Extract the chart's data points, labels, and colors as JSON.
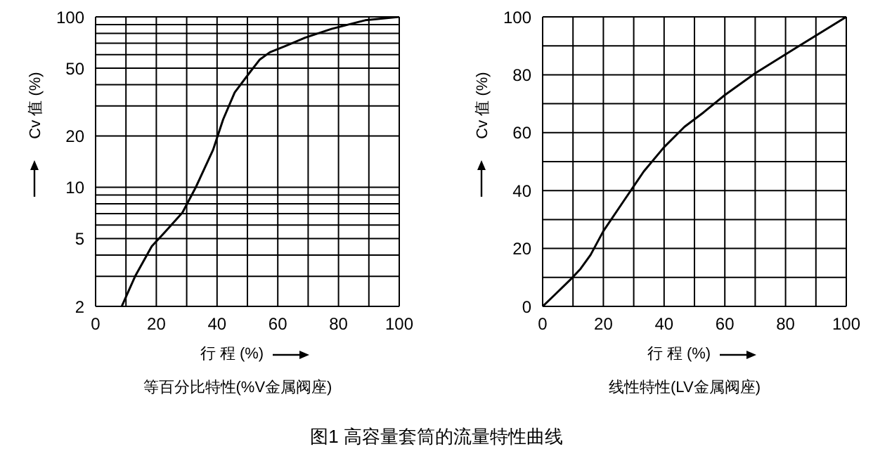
{
  "chart_data": [
    {
      "type": "line",
      "subtitle": "等百分比特性(%V金属阀座)",
      "xlabel": "行 程 (%)",
      "ylabel": "Cv 值 (%)",
      "annotations": [
        "图1 高容量套筒的流量特性曲线"
      ],
      "log": "y",
      "grid": true,
      "marker": "none",
      "line_style": "solid",
      "x": [
        8.6,
        13,
        18.5,
        23,
        28.6,
        33,
        38.7,
        42,
        45.8,
        50.7,
        54,
        57.4,
        63,
        69,
        77.7,
        88.8,
        100
      ],
      "series": [
        {
          "color": "#000000",
          "values": [
            2,
            3,
            4.5,
            5.5,
            7.1,
            10,
            16.6,
            25,
            36,
            47,
            56,
            62,
            68,
            75.5,
            85,
            95.5,
            100
          ]
        }
      ],
      "xlim": [
        0,
        100
      ],
      "xticks": [
        0,
        {
          "value": 10,
          "label": null
        },
        20,
        {
          "value": 30,
          "label": null
        },
        40,
        {
          "value": 50,
          "label": null
        },
        60,
        {
          "value": 70,
          "label": null
        },
        80,
        {
          "value": 90,
          "label": null
        },
        100
      ],
      "ylim": [
        2,
        100
      ],
      "yticks": [
        2,
        {
          "value": 3,
          "label": null
        },
        {
          "value": 4,
          "label": null
        },
        5,
        {
          "value": 6,
          "label": null
        },
        {
          "value": 7,
          "label": null
        },
        {
          "value": 8,
          "label": null
        },
        {
          "value": 9,
          "label": null
        },
        10,
        20,
        {
          "value": 30,
          "label": null
        },
        {
          "value": 40,
          "label": null
        },
        50,
        {
          "value": 60,
          "label": null
        },
        {
          "value": 70,
          "label": null
        },
        {
          "value": 80,
          "label": null
        },
        {
          "value": 90,
          "label": null
        },
        100
      ]
    },
    {
      "type": "line",
      "subtitle": "线性特性(LV金属阀座)",
      "xlabel": "行 程 (%)",
      "ylabel": "Cv 值 (%)",
      "grid": true,
      "marker": "none",
      "line_style": "solid",
      "x": [
        0,
        4,
        9.2,
        12.5,
        15.8,
        20,
        26.7,
        33.3,
        40,
        46.7,
        53,
        60,
        70,
        83,
        100
      ],
      "series": [
        {
          "color": "#000000",
          "values": [
            0,
            4,
            9.3,
            13,
            17.8,
            26,
            36.4,
            46.6,
            55,
            62,
            67,
            73,
            80.5,
            89,
            100
          ]
        }
      ],
      "xlim": [
        0,
        100
      ],
      "xticks": [
        0,
        {
          "value": 10,
          "label": null
        },
        20,
        {
          "value": 30,
          "label": null
        },
        40,
        {
          "value": 50,
          "label": null
        },
        60,
        {
          "value": 70,
          "label": null
        },
        80,
        {
          "value": 90,
          "label": null
        },
        100
      ],
      "ylim": [
        0,
        100
      ],
      "yticks": [
        0,
        {
          "value": 10,
          "label": null
        },
        20,
        {
          "value": 30,
          "label": null
        },
        40,
        {
          "value": 50,
          "label": null
        },
        60,
        {
          "value": 70,
          "label": null
        },
        80,
        {
          "value": 90,
          "label": null
        },
        100
      ]
    }
  ]
}
